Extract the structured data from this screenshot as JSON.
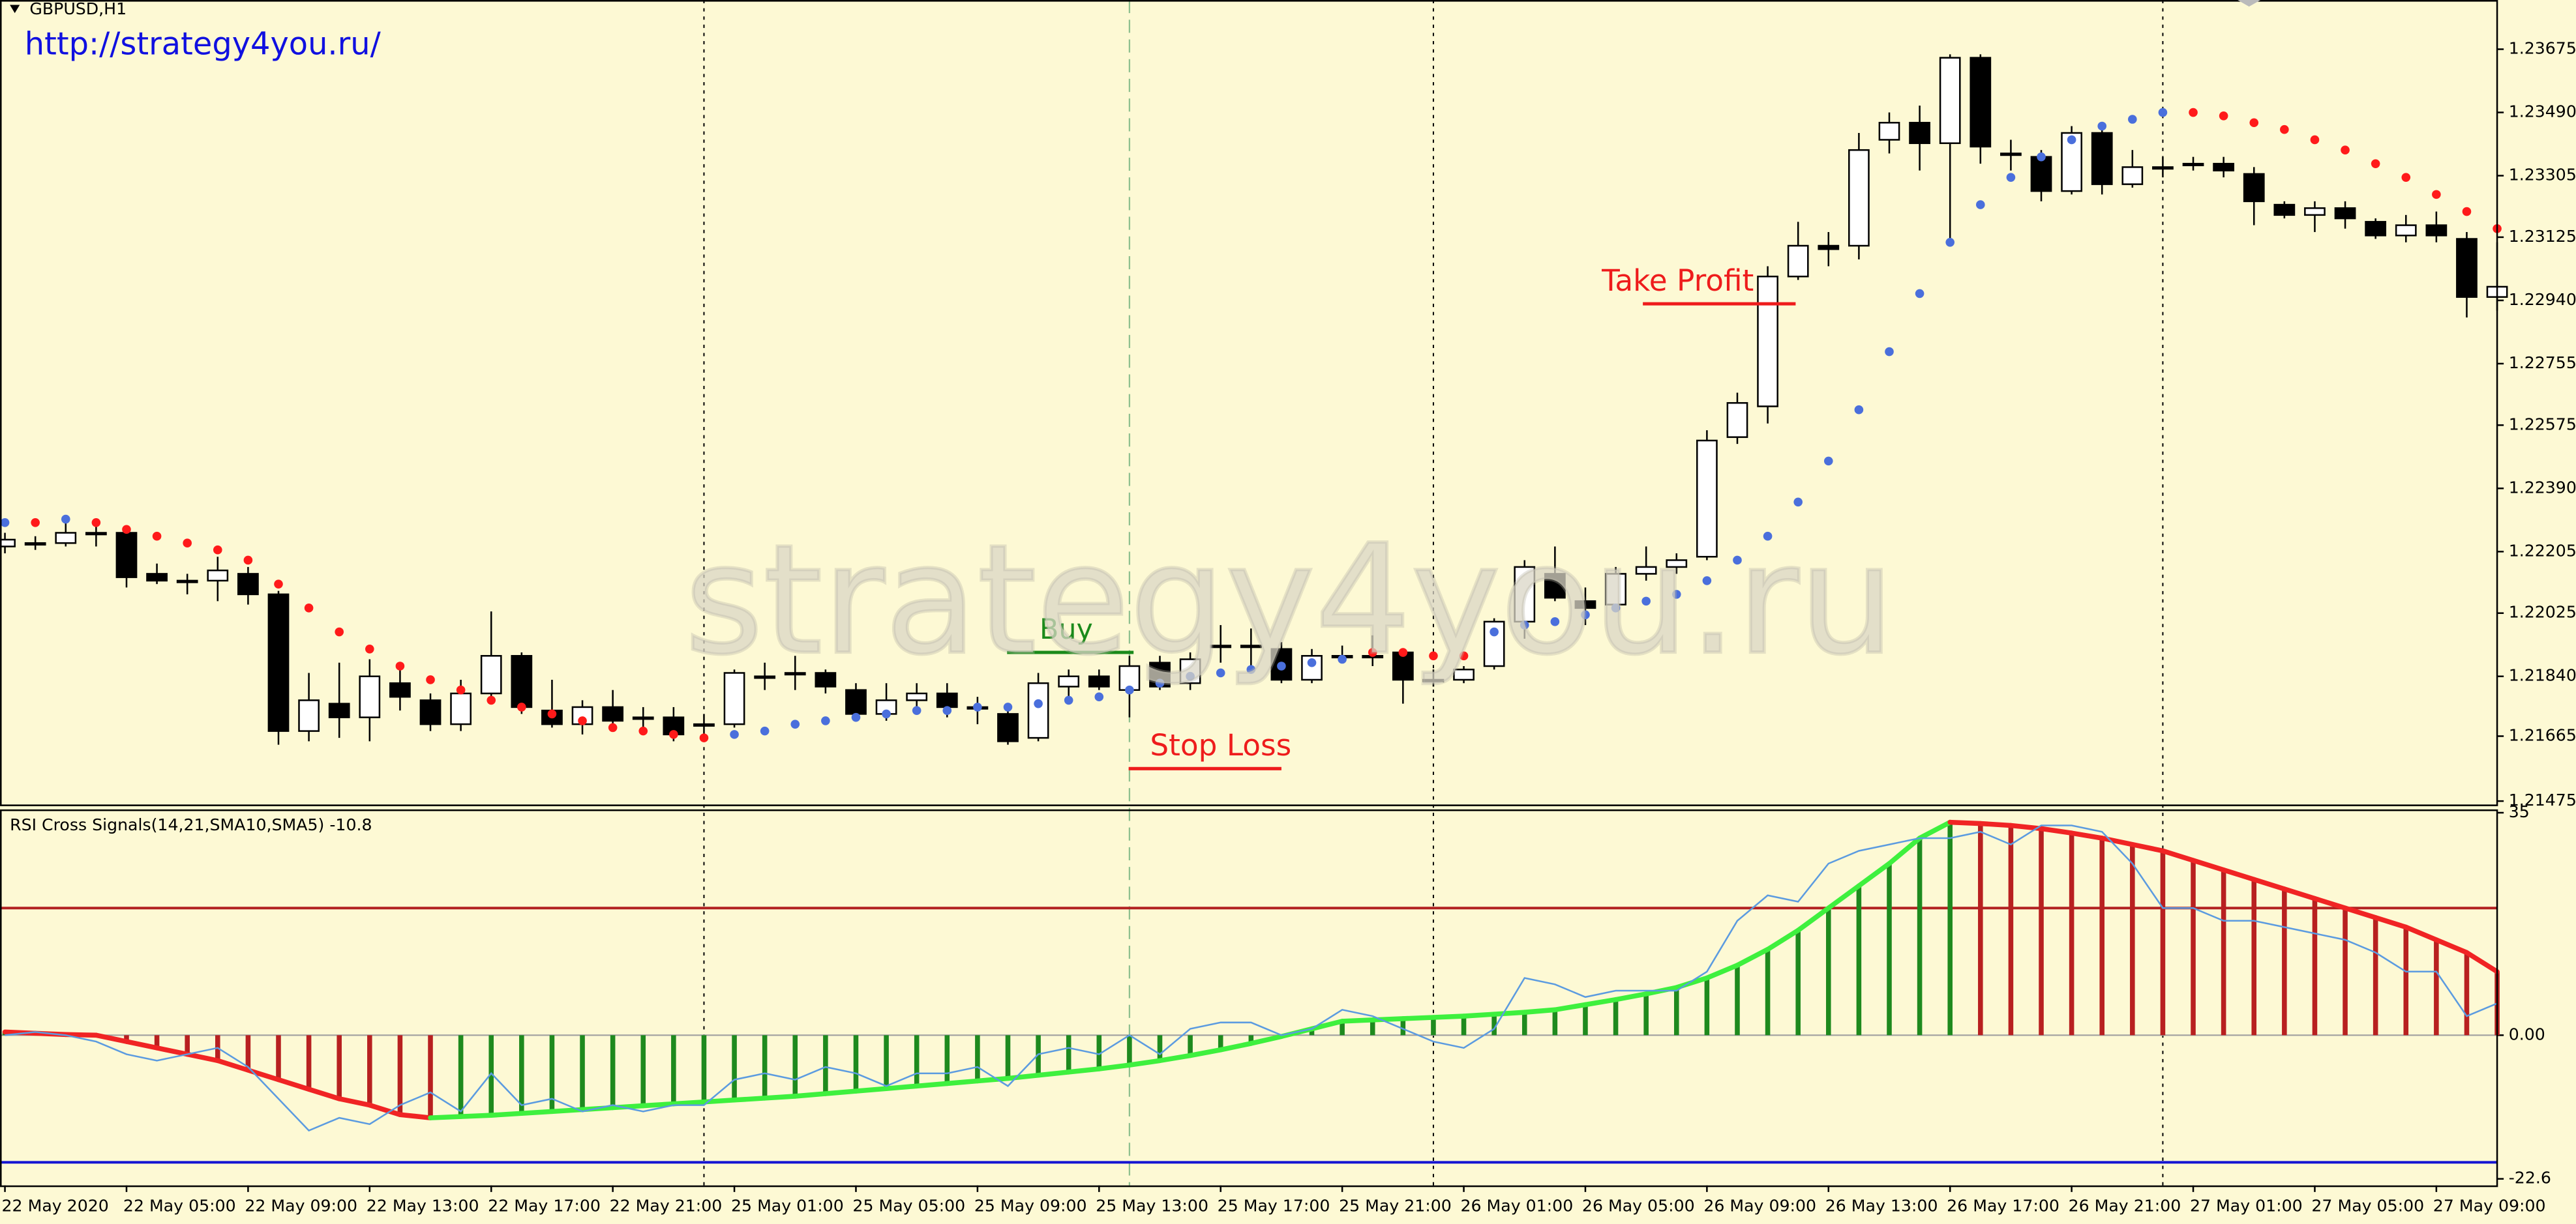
{
  "chart_data": [
    {
      "type": "candlestick",
      "title": "GBPUSD,H1",
      "subtitle": "http://strategy4you.ru/",
      "watermark": "strategy4you.ru",
      "open": [
        1.2222,
        1.2223,
        1.2223,
        1.2226,
        1.2226,
        1.2214,
        1.2212,
        1.2212,
        1.2214,
        1.2208,
        1.2168,
        1.2176,
        1.2172,
        1.2182,
        1.2177,
        1.217,
        1.2179,
        1.219,
        1.2174,
        1.217,
        1.2175,
        1.2172,
        1.2172,
        1.217,
        1.217,
        1.2184,
        1.2185,
        1.2185,
        1.218,
        1.2173,
        1.2177,
        1.2179,
        1.2175,
        1.2173,
        1.2166,
        1.2181,
        1.2184,
        1.218,
        1.2188,
        1.2182,
        1.2193,
        1.2193,
        1.2192,
        1.2183,
        1.219,
        1.219,
        1.2191,
        1.2183,
        1.2183,
        1.2187,
        1.22,
        1.2214,
        1.2206,
        1.2205,
        1.2214,
        1.2216,
        1.2219,
        1.2254,
        1.2263,
        1.2301,
        1.231,
        1.231,
        1.2341,
        1.2346,
        1.234,
        1.2365,
        1.2337,
        1.2336,
        1.2326,
        1.2343,
        1.2328,
        1.2333,
        1.2334,
        1.2334,
        1.2331,
        1.2322,
        1.2319,
        1.2321,
        1.2317,
        1.2313,
        1.2316,
        1.2312,
        1.2295
      ],
      "high": [
        1.2226,
        1.2225,
        1.2229,
        1.2229,
        1.2227,
        1.2217,
        1.2214,
        1.2219,
        1.2216,
        1.2209,
        1.2185,
        1.2188,
        1.2189,
        1.2186,
        1.2179,
        1.2183,
        1.2203,
        1.2191,
        1.2183,
        1.2177,
        1.218,
        1.2175,
        1.2175,
        1.2173,
        1.2186,
        1.2188,
        1.219,
        1.2186,
        1.2182,
        1.2182,
        1.2182,
        1.2182,
        1.2178,
        1.2175,
        1.2185,
        1.2186,
        1.2186,
        1.219,
        1.219,
        1.2191,
        1.2199,
        1.2198,
        1.2194,
        1.2192,
        1.2193,
        1.2196,
        1.2192,
        1.2186,
        1.2187,
        1.2201,
        1.2218,
        1.2222,
        1.221,
        1.2216,
        1.2222,
        1.222,
        1.2256,
        1.2267,
        1.2304,
        1.2317,
        1.2314,
        1.2343,
        1.2349,
        1.2351,
        1.2366,
        1.2366,
        1.2341,
        1.2338,
        1.2345,
        1.2345,
        1.2338,
        1.2336,
        1.2336,
        1.2336,
        1.2333,
        1.2323,
        1.2323,
        1.2323,
        1.2318,
        1.2319,
        1.232,
        1.2314,
        1.2311
      ],
      "low": [
        1.222,
        1.2221,
        1.2222,
        1.2222,
        1.221,
        1.2211,
        1.2208,
        1.2206,
        1.2205,
        1.2164,
        1.2165,
        1.2166,
        1.2165,
        1.2174,
        1.2168,
        1.2168,
        1.2176,
        1.2173,
        1.2169,
        1.2167,
        1.2169,
        1.2169,
        1.2165,
        1.2167,
        1.2169,
        1.218,
        1.218,
        1.2179,
        1.2171,
        1.2171,
        1.2174,
        1.2172,
        1.217,
        1.2164,
        1.2165,
        1.2177,
        1.218,
        1.2172,
        1.218,
        1.218,
        1.2188,
        1.2187,
        1.2182,
        1.2182,
        1.2188,
        1.2187,
        1.2176,
        1.2181,
        1.2182,
        1.2186,
        1.2195,
        1.2206,
        1.2199,
        1.2204,
        1.2212,
        1.2214,
        1.2218,
        1.2252,
        1.2258,
        1.23,
        1.2304,
        1.2306,
        1.2337,
        1.2332,
        1.2312,
        1.2334,
        1.2332,
        1.2323,
        1.2325,
        1.2325,
        1.2327,
        1.233,
        1.2332,
        1.233,
        1.2316,
        1.2318,
        1.2314,
        1.2315,
        1.2312,
        1.2311,
        1.2311,
        1.2289,
        1.2291
      ],
      "close": [
        1.2224,
        1.2223,
        1.2226,
        1.2226,
        1.2213,
        1.2212,
        1.2212,
        1.2215,
        1.2208,
        1.2168,
        1.2177,
        1.2172,
        1.2184,
        1.2178,
        1.217,
        1.2179,
        1.219,
        1.2175,
        1.217,
        1.2175,
        1.2171,
        1.2172,
        1.2167,
        1.217,
        1.2185,
        1.2184,
        1.2185,
        1.2181,
        1.2173,
        1.2177,
        1.2179,
        1.2175,
        1.2175,
        1.2165,
        1.2182,
        1.2184,
        1.2181,
        1.2187,
        1.2181,
        1.2189,
        1.2193,
        1.2193,
        1.2183,
        1.219,
        1.219,
        1.219,
        1.2183,
        1.2183,
        1.2186,
        1.22,
        1.2216,
        1.2207,
        1.2204,
        1.2214,
        1.2216,
        1.2218,
        1.2253,
        1.2264,
        1.2301,
        1.231,
        1.2309,
        1.2338,
        1.2346,
        1.234,
        1.2365,
        1.2339,
        1.2337,
        1.2326,
        1.2343,
        1.2328,
        1.2333,
        1.2333,
        1.2334,
        1.2332,
        1.2323,
        1.2319,
        1.2321,
        1.2318,
        1.2313,
        1.2316,
        1.2313,
        1.2295,
        1.2298
      ],
      "up_color": "#ffffff",
      "down_color": "#000000",
      "sar_below": [
        1.2229,
        null,
        1.223,
        null,
        null,
        null,
        null,
        null,
        null,
        null,
        null,
        null,
        null,
        null,
        null,
        null,
        null,
        null,
        null,
        null,
        null,
        null,
        null,
        null,
        1.2167,
        1.2168,
        1.217,
        1.2171,
        1.2172,
        1.2173,
        1.2174,
        1.2174,
        1.2175,
        1.2175,
        1.2176,
        1.2177,
        1.2178,
        1.218,
        1.2182,
        1.2184,
        1.2185,
        1.2186,
        1.2187,
        1.2188,
        1.2189,
        null,
        null,
        null,
        null,
        1.2197,
        1.2199,
        1.22,
        1.2202,
        1.2204,
        1.2206,
        1.2208,
        1.2212,
        1.2218,
        1.2225,
        1.2235,
        1.2247,
        1.2262,
        1.2279,
        1.2296,
        1.2311,
        1.2322,
        1.233,
        1.2336,
        1.2341,
        1.2345,
        1.2347,
        1.2349,
        null,
        null,
        null,
        null,
        null,
        null,
        null,
        null,
        null,
        null,
        null
      ],
      "sar_above": [
        null,
        1.2229,
        null,
        1.2229,
        1.2227,
        1.2225,
        1.2223,
        1.2221,
        1.2218,
        1.2211,
        1.2204,
        1.2197,
        1.2192,
        1.2187,
        1.2183,
        1.218,
        1.2177,
        1.2175,
        1.2173,
        1.2171,
        1.2169,
        1.2168,
        1.2167,
        1.2166,
        null,
        null,
        null,
        null,
        null,
        null,
        null,
        null,
        null,
        null,
        null,
        null,
        null,
        null,
        null,
        null,
        null,
        null,
        null,
        null,
        null,
        1.2191,
        1.2191,
        1.219,
        1.219,
        null,
        null,
        null,
        null,
        null,
        null,
        null,
        null,
        null,
        null,
        null,
        null,
        null,
        null,
        null,
        null,
        null,
        null,
        null,
        null,
        null,
        null,
        null,
        1.2349,
        1.2348,
        1.2346,
        1.2344,
        1.2341,
        1.2338,
        1.2334,
        1.233,
        1.2325,
        1.232,
        1.2315
      ],
      "sar_below_color": "#4a6fdc",
      "sar_above_color": "#ff1a1a",
      "annotations": [
        {
          "text": "Buy",
          "value": 1.2191,
          "color": "#1a8a1a"
        },
        {
          "text": "Take Profit",
          "value": 1.2293,
          "color": "#ee1c1c"
        },
        {
          "text": "Stop Loss",
          "value": 1.2157,
          "color": "#ee1c1c"
        }
      ],
      "ylim": [
        1.21465,
        1.23819
      ],
      "yticks": [
        1.23675,
        {
          "value": 1.2349,
          "label": "1.23490"
        },
        1.23305,
        1.23125,
        {
          "value": 1.2294,
          "label": "1.22940"
        },
        1.22755,
        1.22575,
        {
          "value": 1.2239,
          "label": "1.22390"
        },
        1.22205,
        1.22025,
        {
          "value": 1.2184,
          "label": "1.21840"
        },
        1.21665,
        1.21475
      ]
    },
    {
      "type": "bar",
      "title": "RSI Cross Signals(14,21,SMA10,SMA5) -10.8",
      "categories": [
        "22 May 2020",
        null,
        null,
        null,
        "22 May 05:00",
        null,
        null,
        null,
        "22 May 09:00",
        null,
        null,
        null,
        "22 May 13:00",
        null,
        null,
        null,
        "22 May 17:00",
        null,
        null,
        null,
        "22 May 21:00",
        null,
        null,
        null,
        "25 May 01:00",
        null,
        null,
        null,
        "25 May 05:00",
        null,
        null,
        null,
        "25 May 09:00",
        null,
        null,
        null,
        "25 May 13:00",
        null,
        null,
        null,
        "25 May 17:00",
        null,
        null,
        null,
        "25 May 21:00",
        null,
        null,
        null,
        "26 May 01:00",
        null,
        null,
        null,
        "26 May 05:00",
        null,
        null,
        null,
        "26 May 09:00",
        null,
        null,
        null,
        "26 May 13:00",
        null,
        null,
        null,
        "26 May 17:00",
        null,
        null,
        null,
        "26 May 21:00",
        null,
        null,
        null,
        "27 May 01:00",
        null,
        null,
        null,
        "27 May 05:00",
        null,
        null,
        null,
        "27 May 09:00",
        null,
        null
      ],
      "values": [
        0.5,
        0.3,
        0.1,
        0,
        -1,
        -2,
        -3,
        -4,
        -5.5,
        -7,
        -8.5,
        -10,
        -11,
        -12.5,
        -13,
        -12.8,
        -12.6,
        -12.3,
        -12,
        -11.7,
        -11.4,
        -11.1,
        -10.8,
        -10.5,
        -10.2,
        -9.9,
        -9.6,
        -9.2,
        -8.8,
        -8.4,
        -8,
        -7.6,
        -7.2,
        -6.8,
        -6.3,
        -5.8,
        -5.3,
        -4.7,
        -4,
        -3.2,
        -2.3,
        -1.3,
        -0.2,
        1,
        2.2,
        2.4,
        2.6,
        2.8,
        3,
        3.3,
        3.6,
        4,
        4.8,
        5.6,
        6.5,
        7.5,
        9,
        11,
        13.5,
        16.5,
        20,
        23.5,
        27,
        31,
        33.5,
        33.3,
        33,
        32.5,
        31.8,
        31,
        30,
        29,
        27.5,
        26,
        24.5,
        23,
        21.5,
        20,
        18.5,
        17,
        15,
        13,
        10
      ],
      "up_color": "#1e8a1e",
      "down_color": "#b82020",
      "line_up_color": "#3ef03e",
      "line_down_color": "#f02424",
      "rsi": [
        0,
        0.5,
        0,
        -1,
        -3,
        -4,
        -3,
        -2,
        -5,
        -10,
        -15,
        -13,
        -14,
        -11,
        -9,
        -12,
        -6,
        -11,
        -10,
        -12,
        -11,
        -12,
        -11,
        -11,
        -7,
        -6,
        -7,
        -5,
        -6,
        -8,
        -6,
        -6,
        -5,
        -8,
        -3,
        -2,
        -3,
        0,
        -3,
        1,
        2,
        2,
        0,
        1,
        4,
        3,
        1,
        -1,
        -2,
        1,
        9,
        8,
        6,
        7,
        7,
        7,
        10,
        18,
        22,
        21,
        27,
        29,
        30,
        31,
        31,
        32,
        30,
        33,
        33,
        32,
        27,
        20,
        20,
        18,
        18,
        17,
        16,
        15,
        13,
        10,
        10,
        3,
        5
      ],
      "rsi_color": "#5b9be0",
      "levels": [
        20,
        -20
      ],
      "level_colors": [
        "#b22222",
        "#1414d2"
      ],
      "ylim": [
        -22.6,
        35
      ],
      "yticks": [
        35,
        {
          "value": 0,
          "label": "0.00"
        },
        -22.6
      ]
    }
  ]
}
